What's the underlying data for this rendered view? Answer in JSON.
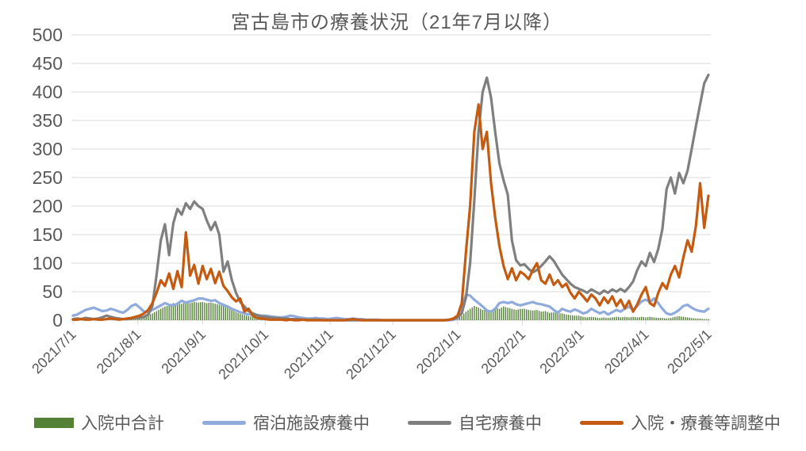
{
  "title": "宮古島市の療養状況（21年7月以降）",
  "chart_data": {
    "type": "mixed",
    "title": "宮古島市の療養状況（21年7月以降）",
    "xlabel": "",
    "ylabel": "",
    "ylim": [
      0,
      500
    ],
    "y_ticks": [
      0,
      50,
      100,
      150,
      200,
      250,
      300,
      350,
      400,
      450,
      500
    ],
    "grid": true,
    "legend_position": "bottom",
    "x_tick_labels": [
      "2021/7/1",
      "2021/8/1",
      "2021/9/1",
      "2021/10/1",
      "2021/11/1",
      "2021/12/1",
      "2022/1/1",
      "2022/2/1",
      "2022/3/1",
      "2022/4/1",
      "2022/5/1"
    ],
    "x_tick_days": [
      0,
      31,
      62,
      92,
      123,
      153,
      184,
      215,
      243,
      274,
      304
    ],
    "start_date": "2021/7/1",
    "end_date": "2022/5/1",
    "sample_step_days": 2,
    "series": [
      {
        "name": "入院中合計",
        "type": "bar",
        "color": "#538135",
        "values": [
          1,
          1,
          2,
          2,
          3,
          2,
          2,
          3,
          4,
          3,
          3,
          2,
          2,
          3,
          4,
          5,
          5,
          7,
          9,
          12,
          16,
          20,
          24,
          26,
          30,
          28,
          29,
          31,
          30,
          32,
          31,
          32,
          30,
          31,
          29,
          27,
          25,
          22,
          18,
          14,
          11,
          9,
          7,
          6,
          5,
          4,
          3,
          2,
          2,
          1,
          1,
          1,
          1,
          0,
          0,
          0,
          0,
          0,
          0,
          0,
          0,
          0,
          0,
          0,
          0,
          0,
          0,
          0,
          0,
          0,
          0,
          0,
          0,
          0,
          0,
          0,
          0,
          0,
          0,
          0,
          0,
          0,
          0,
          0,
          0,
          0,
          0,
          0,
          0,
          0,
          0,
          1,
          3,
          8,
          15,
          20,
          25,
          22,
          18,
          20,
          16,
          22,
          20,
          24,
          22,
          20,
          18,
          20,
          20,
          18,
          17,
          18,
          15,
          16,
          13,
          14,
          12,
          12,
          10,
          9,
          8,
          8,
          6,
          5,
          6,
          5,
          4,
          5,
          4,
          5,
          6,
          5,
          6,
          5,
          6,
          5,
          6,
          5,
          6,
          5,
          4,
          4,
          3,
          4,
          6,
          7,
          6,
          5,
          4,
          3,
          3,
          2,
          2
        ]
      },
      {
        "name": "宿泊施設療養中",
        "type": "line",
        "color": "#8faadc",
        "values": [
          8,
          10,
          14,
          18,
          20,
          22,
          19,
          16,
          17,
          20,
          18,
          15,
          13,
          18,
          25,
          28,
          22,
          15,
          14,
          18,
          22,
          26,
          30,
          27,
          26,
          29,
          34,
          31,
          33,
          35,
          38,
          38,
          36,
          34,
          35,
          30,
          27,
          24,
          20,
          17,
          14,
          12,
          10,
          10,
          9,
          8,
          8,
          7,
          6,
          5,
          5,
          6,
          8,
          7,
          5,
          4,
          3,
          3,
          4,
          3,
          3,
          2,
          3,
          4,
          3,
          2,
          2,
          3,
          2,
          2,
          1,
          1,
          1,
          1,
          0,
          0,
          0,
          0,
          0,
          0,
          0,
          0,
          0,
          0,
          0,
          0,
          0,
          0,
          0,
          0,
          0,
          1,
          3,
          22,
          45,
          43,
          36,
          30,
          24,
          17,
          15,
          20,
          30,
          32,
          30,
          32,
          28,
          26,
          28,
          30,
          32,
          29,
          28,
          26,
          24,
          18,
          13,
          20,
          17,
          15,
          19,
          16,
          12,
          14,
          20,
          16,
          12,
          15,
          10,
          14,
          18,
          15,
          20,
          24,
          18,
          25,
          33,
          36,
          32,
          38,
          30,
          20,
          12,
          10,
          13,
          18,
          25,
          27,
          22,
          18,
          16,
          15,
          20
        ]
      },
      {
        "name": "自宅療養中",
        "type": "line",
        "color": "#7f7f7f",
        "values": [
          2,
          3,
          2,
          4,
          3,
          2,
          3,
          5,
          8,
          6,
          4,
          3,
          2,
          2,
          3,
          4,
          4,
          6,
          10,
          25,
          80,
          140,
          168,
          114,
          170,
          195,
          185,
          205,
          195,
          208,
          200,
          195,
          175,
          158,
          172,
          150,
          85,
          103,
          70,
          48,
          32,
          24,
          16,
          12,
          9,
          7,
          6,
          5,
          4,
          4,
          3,
          3,
          2,
          2,
          2,
          1,
          1,
          1,
          1,
          1,
          0,
          0,
          0,
          0,
          0,
          0,
          0,
          0,
          0,
          0,
          0,
          0,
          0,
          0,
          0,
          0,
          0,
          0,
          0,
          0,
          0,
          0,
          0,
          0,
          0,
          0,
          0,
          0,
          0,
          0,
          1,
          2,
          5,
          12,
          40,
          100,
          210,
          330,
          400,
          425,
          390,
          330,
          275,
          245,
          220,
          140,
          105,
          96,
          98,
          90,
          84,
          88,
          95,
          103,
          112,
          104,
          92,
          80,
          72,
          64,
          58,
          55,
          52,
          48,
          54,
          50,
          46,
          52,
          48,
          54,
          50,
          55,
          50,
          58,
          68,
          88,
          103,
          95,
          118,
          102,
          125,
          160,
          230,
          250,
          222,
          258,
          240,
          262,
          300,
          340,
          378,
          415,
          430
        ]
      },
      {
        "name": "入院・療養等調整中",
        "type": "line",
        "color": "#c55a11",
        "values": [
          1,
          1,
          2,
          1,
          1,
          2,
          1,
          1,
          2,
          3,
          2,
          1,
          2,
          3,
          4,
          6,
          8,
          12,
          18,
          30,
          48,
          70,
          60,
          82,
          55,
          86,
          58,
          154,
          78,
          97,
          64,
          95,
          72,
          90,
          65,
          85,
          60,
          51,
          40,
          33,
          38,
          15,
          20,
          8,
          4,
          3,
          2,
          1,
          1,
          1,
          1,
          0,
          1,
          0,
          0,
          1,
          0,
          0,
          0,
          0,
          0,
          0,
          0,
          0,
          0,
          0,
          1,
          2,
          1,
          0,
          0,
          0,
          0,
          0,
          0,
          0,
          0,
          0,
          0,
          0,
          0,
          0,
          0,
          0,
          0,
          0,
          0,
          0,
          0,
          0,
          1,
          3,
          8,
          30,
          120,
          200,
          330,
          378,
          300,
          330,
          240,
          180,
          130,
          95,
          72,
          91,
          70,
          85,
          80,
          72,
          88,
          100,
          70,
          64,
          80,
          62,
          70,
          58,
          64,
          48,
          38,
          50,
          42,
          33,
          45,
          38,
          26,
          40,
          30,
          42,
          25,
          36,
          21,
          34,
          15,
          28,
          45,
          58,
          30,
          25,
          48,
          65,
          55,
          80,
          95,
          75,
          110,
          140,
          120,
          165,
          240,
          162,
          218
        ]
      }
    ],
    "axis_color": "#d9d9d9",
    "label_color": "#595959"
  },
  "legend": {
    "items": [
      "入院中合計",
      "宿泊施設療養中",
      "自宅療養中",
      "入院・療養等調整中"
    ]
  }
}
